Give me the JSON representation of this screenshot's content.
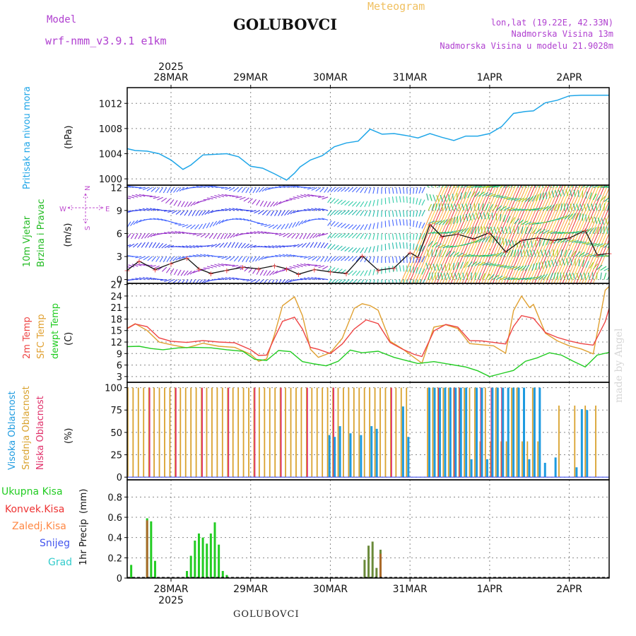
{
  "header": {
    "model_label": "Model",
    "model_version": "wrf-nmm_v3.9.1 e1km",
    "station": "GOLUBOVCI",
    "chart_kind": "Meteogram",
    "lonlat": "lon,lat (19.22E, 42.33N)",
    "altitude": "Nadmorska Visina 13m",
    "model_altitude": "Nadmorska Visina u modelu 21.9028m"
  },
  "footer": {
    "station": "GOLUBOVCI",
    "watermark": "made by Angel"
  },
  "colors": {
    "pressure": "#1fa6e8",
    "wind_label": "#22bb22",
    "wind_dir_label": "#c050d0",
    "temp_2m": "#ee4444",
    "temp_sfc": "#e0a030",
    "temp_dew": "#22cc22",
    "cloud_high": "#1e9be0",
    "cloud_mid": "#d9a22e",
    "cloud_low": "#e0306a",
    "precip_total": "#22cc22",
    "precip_conv": "#ee3333",
    "precip_frozen": "#ff8844",
    "precip_snow": "#4455ee",
    "precip_grad": "#33cccc"
  },
  "chart_data": [
    {
      "type": "line",
      "panel": "pressure",
      "title": "Meteogram",
      "x_ticks": [
        "28MAR",
        "29MAR",
        "30MAR",
        "31MAR",
        "1APR",
        "2APR"
      ],
      "x_year": "2025",
      "x_range_days": [
        -0.55,
        5.5
      ],
      "ylabel": "Pritisak na nivou mora",
      "yunit": "(hPa)",
      "yticks": [
        1000,
        1004,
        1008,
        1012
      ],
      "ylim": [
        999,
        1014.5
      ],
      "grid": true,
      "series": [
        {
          "key": "pressure",
          "x": [
            -0.55,
            -0.45,
            -0.3,
            -0.15,
            0,
            0.15,
            0.25,
            0.4,
            0.55,
            0.7,
            0.85,
            1.0,
            1.15,
            1.3,
            1.45,
            1.55,
            1.62,
            1.75,
            1.9,
            2.05,
            2.2,
            2.35,
            2.5,
            2.65,
            2.8,
            2.95,
            3.1,
            3.25,
            3.4,
            3.55,
            3.7,
            3.85,
            4.0,
            4.15,
            4.3,
            4.45,
            4.55,
            4.7,
            4.85,
            5.0,
            5.15,
            5.3,
            5.45,
            5.5
          ],
          "values": [
            1004.8,
            1004.5,
            1004.4,
            1004.0,
            1003.0,
            1001.5,
            1002.2,
            1003.8,
            1003.9,
            1004.0,
            1003.5,
            1002.0,
            1001.7,
            1000.8,
            999.8,
            1000.9,
            1001.9,
            1003.0,
            1003.7,
            1005.1,
            1005.7,
            1006.0,
            1007.9,
            1007.1,
            1007.2,
            1006.9,
            1006.5,
            1007.2,
            1006.6,
            1006.1,
            1006.8,
            1006.8,
            1007.2,
            1008.3,
            1010.4,
            1010.7,
            1010.8,
            1012.1,
            1012.5,
            1013.2,
            1013.3,
            1013.3,
            1013.3,
            1013.3
          ]
        }
      ]
    },
    {
      "type": "line",
      "panel": "wind",
      "ylabel": "10m Vjetar Brzina i Pravac",
      "yunit": "(m/s)",
      "direction_legend": "N, E, W, S",
      "yticks": [
        0,
        3,
        6,
        9,
        12
      ],
      "ylim": [
        -0.5,
        12.3
      ],
      "grid": true,
      "series": [
        {
          "key": "wind_speed",
          "x": [
            -0.55,
            -0.4,
            -0.2,
            0,
            0.2,
            0.35,
            0.5,
            0.7,
            0.9,
            1.1,
            1.3,
            1.45,
            1.6,
            1.8,
            2.0,
            2.2,
            2.4,
            2.6,
            2.8,
            3.0,
            3.1,
            3.25,
            3.4,
            3.6,
            3.8,
            4.0,
            4.2,
            4.4,
            4.6,
            4.8,
            5.0,
            5.2,
            5.35,
            5.5
          ],
          "values": [
            1.2,
            2.4,
            1.3,
            2.1,
            2.8,
            1.4,
            0.8,
            1.2,
            1.6,
            1.4,
            1.8,
            1.4,
            0.7,
            1.3,
            1.0,
            0.8,
            3.1,
            1.2,
            1.5,
            3.5,
            2.9,
            7.2,
            5.6,
            5.9,
            5.3,
            6.1,
            3.6,
            5.1,
            5.4,
            5.1,
            5.4,
            6.4,
            3.2,
            3.4
          ]
        }
      ]
    },
    {
      "type": "line",
      "panel": "temperature",
      "yunit": "(C)",
      "yticks": [
        3,
        6,
        9,
        12,
        15,
        18,
        21,
        24,
        27
      ],
      "ylim": [
        1.5,
        27.3
      ],
      "grid": true,
      "series": [
        {
          "name": "2m Temp",
          "key": "temp_2m",
          "x": [
            -0.55,
            -0.45,
            -0.3,
            -0.15,
            0,
            0.2,
            0.4,
            0.6,
            0.8,
            1.0,
            1.1,
            1.2,
            1.3,
            1.4,
            1.55,
            1.65,
            1.75,
            1.85,
            2.0,
            2.15,
            2.3,
            2.45,
            2.6,
            2.75,
            2.9,
            3.05,
            3.15,
            3.3,
            3.45,
            3.6,
            3.75,
            3.9,
            4.05,
            4.2,
            4.3,
            4.4,
            4.55,
            4.7,
            4.85,
            5.0,
            5.15,
            5.3,
            5.45,
            5.5
          ],
          "values": [
            15.5,
            16.7,
            16.0,
            13.1,
            12.2,
            11.9,
            12.4,
            12.0,
            11.8,
            10.0,
            8.5,
            8.6,
            13.1,
            17.4,
            18.5,
            15.4,
            10.6,
            10.1,
            9.0,
            11.5,
            15.4,
            17.8,
            16.8,
            11.9,
            10.2,
            8.8,
            8.2,
            14.9,
            16.6,
            15.9,
            12.4,
            12.3,
            11.9,
            11.5,
            16.1,
            18.9,
            18.2,
            14.5,
            13.2,
            12.3,
            11.6,
            11.2,
            17.3,
            20.8
          ]
        },
        {
          "name": "SFC Temp",
          "key": "temp_sfc",
          "x": [
            -0.55,
            -0.45,
            -0.3,
            -0.15,
            0,
            0.2,
            0.4,
            0.6,
            0.8,
            1.0,
            1.1,
            1.2,
            1.3,
            1.4,
            1.55,
            1.65,
            1.75,
            1.85,
            2.0,
            2.15,
            2.3,
            2.4,
            2.5,
            2.6,
            2.75,
            2.9,
            3.05,
            3.15,
            3.3,
            3.45,
            3.6,
            3.75,
            3.9,
            4.05,
            4.2,
            4.3,
            4.4,
            4.5,
            4.55,
            4.7,
            4.85,
            5.0,
            5.15,
            5.3,
            5.45,
            5.5
          ],
          "values": [
            15.6,
            16.8,
            15.0,
            12.0,
            11.3,
            10.5,
            11.7,
            10.9,
            10.6,
            8.8,
            7.0,
            7.6,
            14.0,
            21.5,
            23.8,
            18.9,
            10.1,
            8.0,
            9.2,
            13.0,
            20.8,
            22.0,
            21.5,
            20.3,
            12.2,
            10.3,
            8.0,
            6.5,
            15.9,
            16.5,
            15.5,
            11.6,
            11.3,
            11.0,
            9.1,
            20.2,
            24.0,
            21.0,
            21.8,
            14.3,
            12.3,
            11.0,
            10.2,
            8.9,
            25.5,
            26.5
          ]
        },
        {
          "name": "dewpt Temp",
          "key": "temp_dew",
          "x": [
            -0.55,
            -0.4,
            -0.25,
            -0.1,
            0.1,
            0.3,
            0.5,
            0.7,
            0.9,
            1.05,
            1.2,
            1.35,
            1.5,
            1.65,
            1.8,
            1.95,
            2.1,
            2.25,
            2.4,
            2.6,
            2.8,
            2.95,
            3.1,
            3.3,
            3.5,
            3.7,
            3.85,
            4.0,
            4.15,
            4.3,
            4.45,
            4.6,
            4.75,
            4.9,
            5.05,
            5.2,
            5.35,
            5.5
          ],
          "values": [
            10.8,
            10.9,
            10.3,
            10.0,
            10.5,
            10.6,
            10.5,
            10.0,
            9.6,
            7.5,
            7.2,
            9.8,
            9.5,
            6.9,
            6.3,
            5.8,
            7.0,
            9.9,
            9.2,
            9.6,
            8.0,
            7.2,
            6.4,
            6.9,
            6.2,
            5.5,
            4.5,
            3.0,
            3.8,
            4.6,
            7.0,
            7.9,
            9.2,
            8.6,
            7.0,
            5.5,
            8.6,
            9.3
          ]
        }
      ]
    },
    {
      "type": "bar",
      "panel": "clouds",
      "yunit": "(%)",
      "yticks": [
        0,
        25,
        50,
        75,
        100
      ],
      "ylim": [
        -3,
        106
      ],
      "grid": true,
      "series": [
        {
          "name": "Visoka Oblacnost",
          "key": "cloud_high"
        },
        {
          "name": "Srednja Oblacnost",
          "key": "cloud_mid"
        },
        {
          "name": "Niska Oblacnost",
          "key": "cloud_low"
        }
      ]
    },
    {
      "type": "bar",
      "panel": "precip",
      "ylabel": "1hr Precip",
      "yunit": "(mm)",
      "yticks": [
        0,
        0.2,
        0.4,
        0.6,
        0.8
      ],
      "ylim": [
        0,
        0.97
      ],
      "grid": true,
      "series": [
        {
          "name": "Ukupna Kisa",
          "key": "precip_total",
          "x": [
            -0.5,
            -0.3,
            -0.25,
            -0.2,
            0.2,
            0.25,
            0.3,
            0.35,
            0.4,
            0.45,
            0.5,
            0.55,
            0.6,
            0.65,
            0.7,
            2.43,
            2.48,
            2.53,
            2.58,
            2.63
          ],
          "values": [
            0.13,
            0.59,
            0.56,
            0.17,
            0.07,
            0.22,
            0.37,
            0.44,
            0.4,
            0.34,
            0.44,
            0.55,
            0.33,
            0.07,
            0.03,
            0.18,
            0.32,
            0.36,
            0.1,
            0.28
          ]
        },
        {
          "name": "Konvek.Kisa",
          "key": "precip_conv",
          "x": [
            -0.3,
            2.63
          ],
          "values": [
            0.57,
            0.24
          ]
        },
        {
          "name": "Zaledj.Kisa",
          "key": "precip_frozen",
          "x": [],
          "values": []
        },
        {
          "name": "Snijeg",
          "key": "precip_snow",
          "x": [],
          "values": []
        },
        {
          "name": "Grad",
          "key": "precip_grad",
          "x": [],
          "values": []
        }
      ]
    }
  ],
  "labels": {
    "pressure": "Pritisak na nivou mora",
    "wind1": "10m Vjetar",
    "wind2": "Brzina i Pravac",
    "dir_n": "N",
    "dir_e": "E",
    "dir_w": "W",
    "dir_s": "S",
    "t2m": "2m Temp",
    "tsfc": "SFC Temp",
    "tdew": "dewpt Temp",
    "cl_high": "Visoka Oblacnost",
    "cl_mid": "Srednja Oblacnost",
    "cl_low": "Niska Oblacnost",
    "p_total": "Ukupna Kisa",
    "p_conv": "Konvek.Kisa",
    "p_frozen": "Zaledj.Kisa",
    "p_snow": "Snijeg",
    "p_grad": "Grad",
    "p_axis": "1hr Precip"
  }
}
